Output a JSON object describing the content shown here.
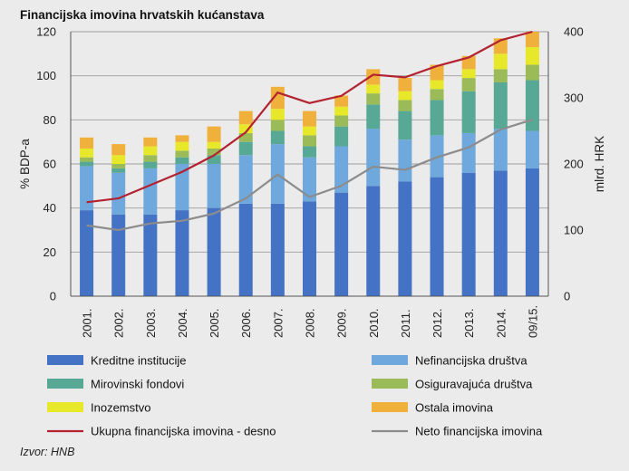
{
  "chart_data": {
    "type": "bar",
    "title": "Financijska imovina hrvatskih kućanstava",
    "categories": [
      "2001.",
      "2002.",
      "2003.",
      "2004.",
      "2005.",
      "2006.",
      "2007.",
      "2008.",
      "2009.",
      "2010.",
      "2011.",
      "2012.",
      "2013.",
      "2014.",
      "09/15."
    ],
    "stacked": true,
    "ylabel_left": "% BDP-a",
    "ylabel_right": "mlrd. HRK",
    "ylim_left": [
      0,
      120
    ],
    "yticks_left": [
      0,
      20,
      40,
      60,
      80,
      100,
      120
    ],
    "ylim_right": [
      0,
      400
    ],
    "yticks_right": [
      0,
      100,
      200,
      300,
      400
    ],
    "grid": true,
    "legend_position": "bottom",
    "series": [
      {
        "name": "Kreditne institucije",
        "axis": "left",
        "kind": "bar",
        "color": "#4472c4",
        "values": [
          39,
          37,
          37,
          39,
          40,
          42,
          42,
          43,
          47,
          50,
          52,
          54,
          56,
          57,
          58
        ]
      },
      {
        "name": "Nefinancijska društva",
        "axis": "left",
        "kind": "bar",
        "color": "#6fa8dc",
        "values": [
          20,
          19,
          21,
          21,
          20,
          22,
          27,
          20,
          21,
          26,
          19,
          19,
          18,
          19,
          17
        ]
      },
      {
        "name": "Mirovinski fondovi",
        "axis": "left",
        "kind": "bar",
        "color": "#58a896",
        "values": [
          2,
          2,
          3,
          3,
          4,
          6,
          6,
          5,
          9,
          11,
          13,
          16,
          19,
          21,
          23
        ]
      },
      {
        "name": "Osiguravajuća društva",
        "axis": "left",
        "kind": "bar",
        "color": "#9bbb59",
        "values": [
          2,
          2,
          3,
          3,
          3,
          4,
          5,
          5,
          5,
          5,
          5,
          5,
          6,
          6,
          7
        ]
      },
      {
        "name": "Inozemstvo",
        "axis": "left",
        "kind": "bar",
        "color": "#e8e82a",
        "values": [
          4,
          4,
          4,
          4,
          3,
          4,
          5,
          4,
          4,
          4,
          4,
          4,
          4,
          7,
          8
        ]
      },
      {
        "name": "Ostala imovina",
        "axis": "left",
        "kind": "bar",
        "color": "#f0b03c",
        "values": [
          5,
          5,
          4,
          3,
          7,
          6,
          10,
          7,
          5,
          7,
          6,
          7,
          6,
          7,
          7
        ]
      },
      {
        "name": "Ukupna financijska imovina - desno",
        "axis": "right",
        "kind": "line",
        "color": "#b22230",
        "values": [
          142,
          148,
          168,
          188,
          213,
          248,
          308,
          292,
          303,
          335,
          331,
          348,
          361,
          387,
          400
        ]
      },
      {
        "name": "Neto financijska imovina",
        "axis": "right",
        "kind": "line",
        "color": "#8c8c8c",
        "values": [
          107,
          100,
          110,
          114,
          125,
          148,
          184,
          150,
          167,
          196,
          191,
          210,
          225,
          252,
          267
        ]
      }
    ]
  },
  "source_note": "Izvor: HNB"
}
